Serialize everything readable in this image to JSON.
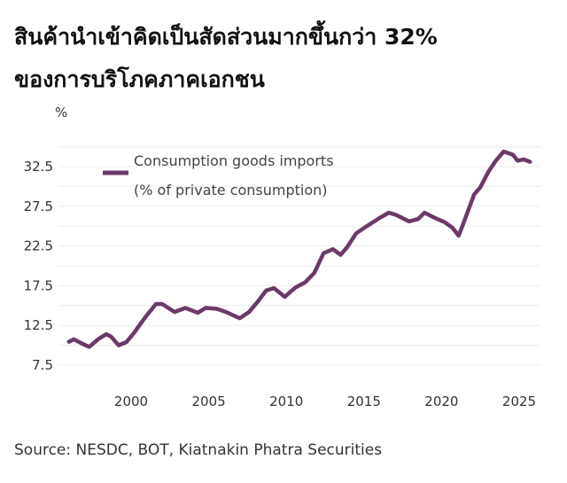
{
  "title_line1": "สินค้านำเข้าคิดเป็นสัดส่วนมากขึ้นกว่า 32%",
  "title_line2": "ของการบริโภคภาคเอกชน",
  "source": "Source: NESDC, BOT, Kiatnakin Phatra Securities",
  "chart_data": {
    "type": "line",
    "title": "สินค้านำเข้าคิดเป็นสัดส่วนมากขึ้นกว่า 32% ของการบริโภคภาคเอกชน",
    "ylabel": "%",
    "xlabel": "",
    "ylim": [
      7.5,
      35
    ],
    "xlim": [
      1995.8,
      2026.1
    ],
    "yticks": [
      "7.5",
      "12.5",
      "17.5",
      "22.5",
      "27.5",
      "32.5"
    ],
    "xticks": [
      "2000",
      "2005",
      "2010",
      "2015",
      "2020",
      "2025"
    ],
    "grid": true,
    "legend_position": "top-left",
    "color": "#6b3a68",
    "series": [
      {
        "name_line1": "Consumption goods imports",
        "name_line2": "(% of private consumption)",
        "x": [
          1996.0,
          1996.3,
          1996.8,
          1997.3,
          1997.9,
          1998.4,
          1998.7,
          1999.2,
          1999.7,
          2000.2,
          2000.9,
          2001.6,
          2002.0,
          2002.8,
          2003.5,
          2004.3,
          2004.8,
          2005.5,
          2006.1,
          2007.0,
          2007.6,
          2008.2,
          2008.7,
          2009.2,
          2009.9,
          2010.6,
          2011.2,
          2011.8,
          2012.4,
          2013.0,
          2013.5,
          2013.9,
          2014.5,
          2015.1,
          2015.9,
          2016.6,
          2017.1,
          2017.9,
          2018.5,
          2018.9,
          2019.5,
          2020.2,
          2020.7,
          2021.1,
          2021.4,
          2022.1,
          2022.5,
          2023.0,
          2023.5,
          2024.0,
          2024.6,
          2024.9,
          2025.3,
          2025.7
        ],
        "y": [
          10.45,
          10.75,
          10.26,
          9.8,
          10.8,
          11.4,
          11.1,
          10.0,
          10.4,
          11.6,
          13.5,
          15.2,
          15.2,
          14.2,
          14.7,
          14.1,
          14.7,
          14.6,
          14.2,
          13.4,
          14.2,
          15.6,
          16.9,
          17.2,
          16.1,
          17.3,
          17.9,
          19.1,
          21.6,
          22.1,
          21.4,
          22.3,
          24.1,
          24.9,
          25.9,
          26.7,
          26.4,
          25.6,
          25.9,
          26.7,
          26.1,
          25.5,
          24.8,
          23.8,
          25.3,
          29.0,
          29.9,
          31.8,
          33.25,
          34.4,
          34.0,
          33.25,
          33.4,
          33.1
        ]
      }
    ]
  }
}
